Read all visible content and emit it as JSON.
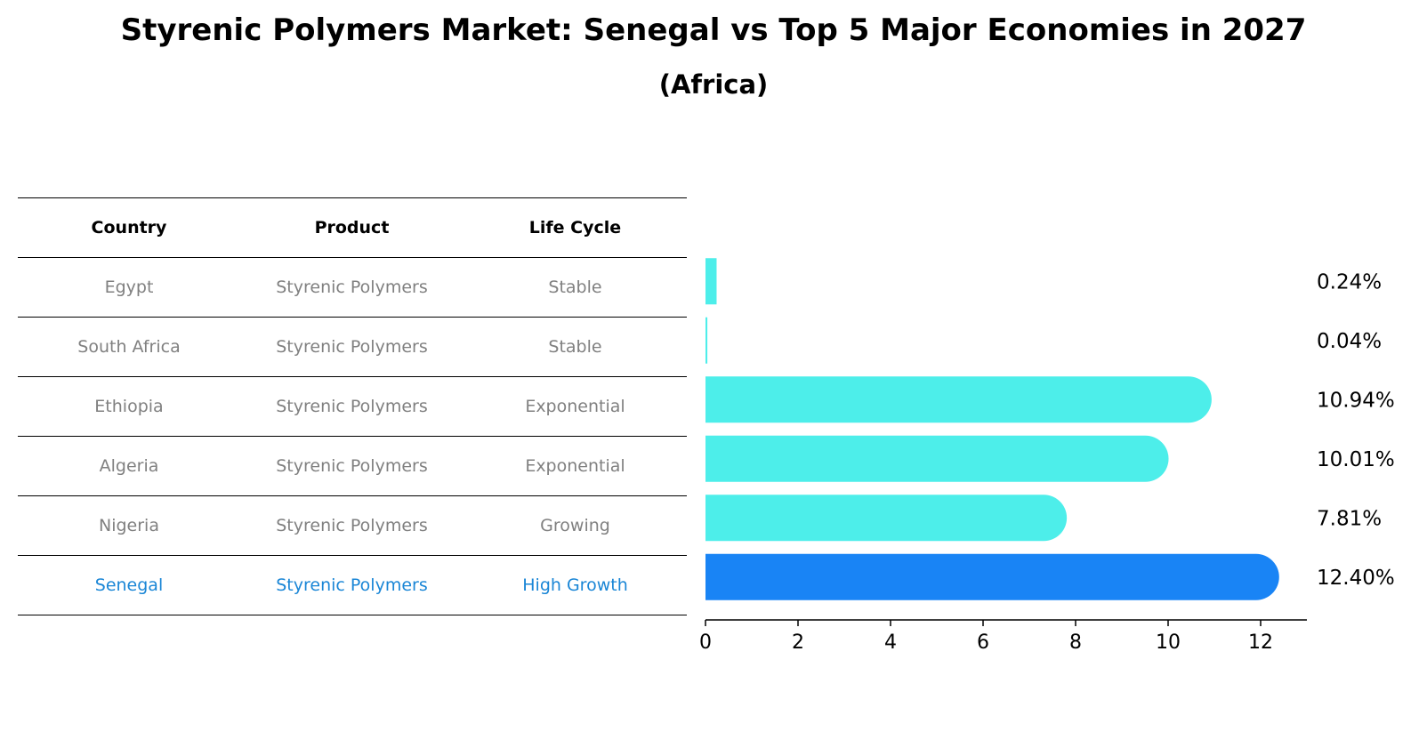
{
  "title": "Styrenic Polymers Market: Senegal vs Top 5 Major Economies in 2027",
  "subtitle": "(Africa)",
  "colors": {
    "bar": "#4DEEEA",
    "highlight": "#1984F5",
    "highlight_text": "#1a86d6",
    "muted_text": "#808080"
  },
  "table": {
    "headers": {
      "country": "Country",
      "product": "Product",
      "life_cycle": "Life Cycle"
    },
    "rows": [
      {
        "country": "Egypt",
        "product": "Styrenic Polymers",
        "life_cycle": "Stable"
      },
      {
        "country": "South Africa",
        "product": "Styrenic Polymers",
        "life_cycle": "Stable"
      },
      {
        "country": "Ethiopia",
        "product": "Styrenic Polymers",
        "life_cycle": "Exponential"
      },
      {
        "country": "Algeria",
        "product": "Styrenic Polymers",
        "life_cycle": "Exponential"
      },
      {
        "country": "Nigeria",
        "product": "Styrenic Polymers",
        "life_cycle": "Growing"
      },
      {
        "country": "Senegal",
        "product": "Styrenic Polymers",
        "life_cycle": "High Growth"
      }
    ]
  },
  "chart_data": {
    "type": "bar",
    "orientation": "horizontal",
    "categories": [
      "Egypt",
      "South Africa",
      "Ethiopia",
      "Algeria",
      "Nigeria",
      "Senegal"
    ],
    "values": [
      0.24,
      0.04,
      10.94,
      10.01,
      7.81,
      12.4
    ],
    "labels": [
      "0.24%",
      "0.04%",
      "10.94%",
      "10.01%",
      "7.81%",
      "12.40%"
    ],
    "highlight": "Senegal",
    "xlim": [
      0,
      13
    ],
    "xticks": [
      0,
      2,
      4,
      6,
      8,
      10,
      12
    ],
    "xtick_labels": [
      "0",
      "2",
      "4",
      "6",
      "8",
      "10",
      "12"
    ]
  }
}
